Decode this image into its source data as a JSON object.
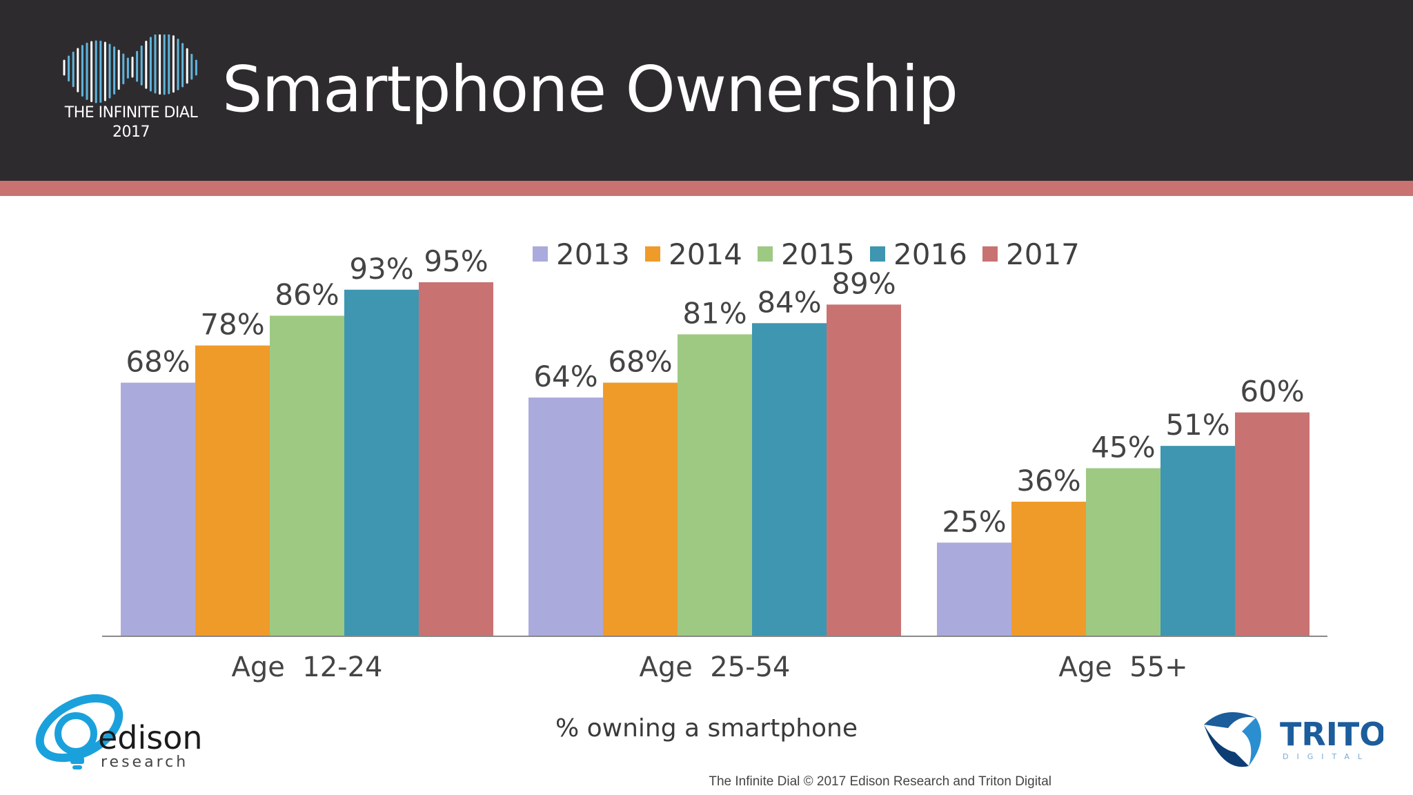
{
  "header": {
    "title": "Smartphone  Ownership",
    "logo_line1": "THE INFINITE DIAL",
    "logo_line2": "2017"
  },
  "chart_data": {
    "type": "bar",
    "title": "Smartphone Ownership",
    "categories": [
      "Age  12-24",
      "Age  25-54",
      "Age  55+"
    ],
    "series": [
      {
        "name": "2013",
        "color": "#aaaadd",
        "values": [
          68,
          64,
          25
        ]
      },
      {
        "name": "2014",
        "color": "#ef9b2a",
        "values": [
          78,
          68,
          36
        ]
      },
      {
        "name": "2015",
        "color": "#9ec983",
        "values": [
          86,
          81,
          45
        ]
      },
      {
        "name": "2016",
        "color": "#3e96b1",
        "values": [
          93,
          84,
          51
        ]
      },
      {
        "name": "2017",
        "color": "#c97272",
        "values": [
          95,
          89,
          60
        ]
      }
    ],
    "value_suffix": "%",
    "xlabel": "% owning a smartphone",
    "ylabel": "",
    "ylim": [
      0,
      100
    ],
    "legend_position": "top-center",
    "grid": false
  },
  "caption": "% owning a smartphone",
  "footer": "The Infinite Dial   © 2017 Edison Research and Triton Digital",
  "logos": {
    "edison_name": "edison",
    "edison_sub": "research",
    "triton_name": "TRITON",
    "triton_sub": "DIGITAL"
  }
}
